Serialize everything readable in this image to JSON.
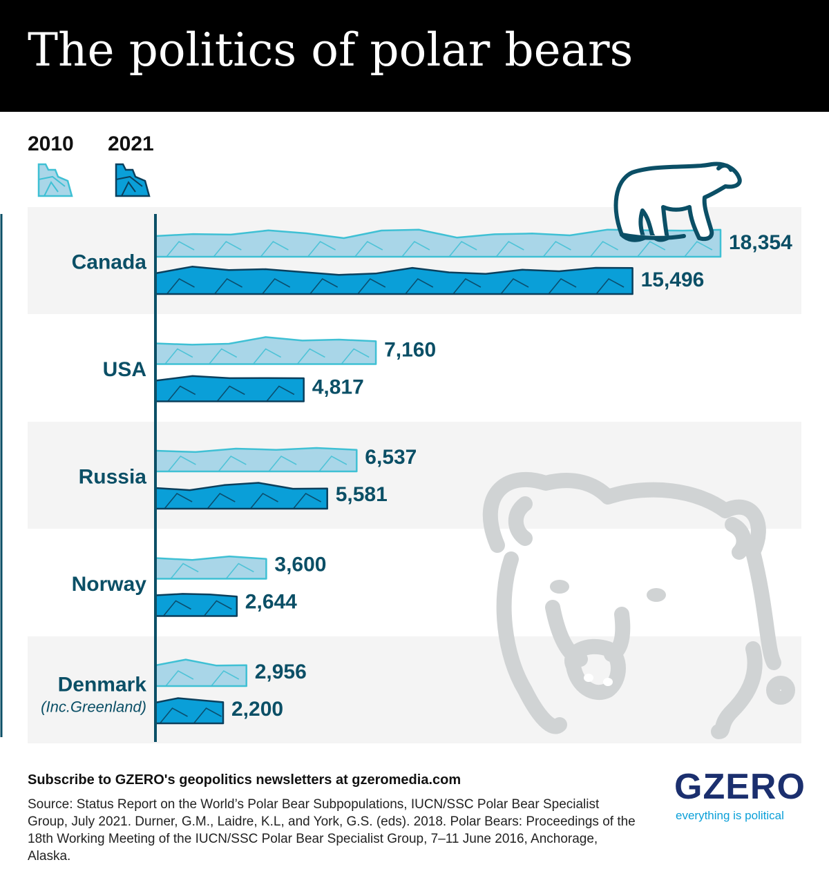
{
  "title": "The politics of polar bears",
  "legend": [
    {
      "label": "2010",
      "color": "#a9d6e8",
      "stroke": "#3fc0d4"
    },
    {
      "label": "2021",
      "color": "#0a9fd8",
      "stroke": "#0b3f5c"
    }
  ],
  "chart_data": {
    "type": "bar",
    "orientation": "horizontal",
    "categories": [
      "Canada",
      "USA",
      "Russia",
      "Norway",
      "Denmark"
    ],
    "category_notes": [
      "",
      "",
      "",
      "",
      "(Inc.Greenland)"
    ],
    "series": [
      {
        "name": "2010",
        "values": [
          18354,
          7160,
          6537,
          3600,
          2956
        ],
        "labels": [
          "18,354",
          "7,160",
          "6,537",
          "3,600",
          "2,956"
        ]
      },
      {
        "name": "2021",
        "values": [
          15496,
          4817,
          5581,
          2644,
          2200
        ],
        "labels": [
          "15,496",
          "4,817",
          "5,581",
          "2,644",
          "2,200"
        ]
      }
    ],
    "xlim": [
      0,
      18354
    ],
    "grid": false,
    "legend_position": "top-left"
  },
  "colors": {
    "label_text": "#0b4f66",
    "band_bg": "#f4f4f4",
    "axis": "#0b4f66",
    "bear_icon": "#0b4f66",
    "bear_watermark": "#d0d3d4"
  },
  "icons": [
    "polar-bear-icon",
    "bear-face-watermark-icon"
  ],
  "footer": {
    "subscribe": "Subscribe to GZERO's geopolitics newsletters at gzeromedia.com",
    "source": "Source: Status Report on the World’s Polar Bear Subpopulations, IUCN/SSC Polar Bear Specialist Group, July 2021. Durner, G.M., Laidre, K.L, and York, G.S. (eds). 2018. Polar Bears: Proceedings of the 18th Working Meeting of the IUCN/SSC Polar Bear Specialist Group, 7–11 June 2016, Anchorage, Alaska."
  },
  "brand": {
    "logo": "GZERO",
    "tagline": "everything is political"
  }
}
